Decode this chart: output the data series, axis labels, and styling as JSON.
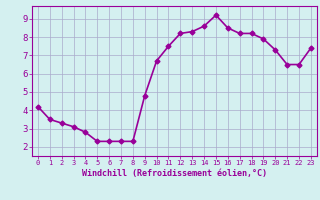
{
  "x": [
    0,
    1,
    2,
    3,
    4,
    5,
    6,
    7,
    8,
    9,
    10,
    11,
    12,
    13,
    14,
    15,
    16,
    17,
    18,
    19,
    20,
    21,
    22,
    23
  ],
  "y": [
    4.2,
    3.5,
    3.3,
    3.1,
    2.8,
    2.3,
    2.3,
    2.3,
    2.3,
    4.8,
    6.7,
    7.5,
    8.2,
    8.3,
    8.6,
    9.2,
    8.5,
    8.2,
    8.2,
    7.9,
    7.3,
    6.5,
    6.5,
    7.4
  ],
  "line_color": "#990099",
  "marker": "D",
  "marker_size": 2.5,
  "bg_color": "#d4f0f0",
  "grid_color": "#aaaacc",
  "xlabel": "Windchill (Refroidissement éolien,°C)",
  "xlim": [
    -0.5,
    23.5
  ],
  "ylim": [
    1.5,
    9.7
  ],
  "yticks": [
    2,
    3,
    4,
    5,
    6,
    7,
    8,
    9
  ],
  "xticks": [
    0,
    1,
    2,
    3,
    4,
    5,
    6,
    7,
    8,
    9,
    10,
    11,
    12,
    13,
    14,
    15,
    16,
    17,
    18,
    19,
    20,
    21,
    22,
    23
  ],
  "axis_label_color": "#990099",
  "tick_color": "#990099",
  "spine_color": "#990099",
  "linewidth": 1.2,
  "xlabel_fontsize": 6.0,
  "xtick_fontsize": 5.0,
  "ytick_fontsize": 6.5
}
